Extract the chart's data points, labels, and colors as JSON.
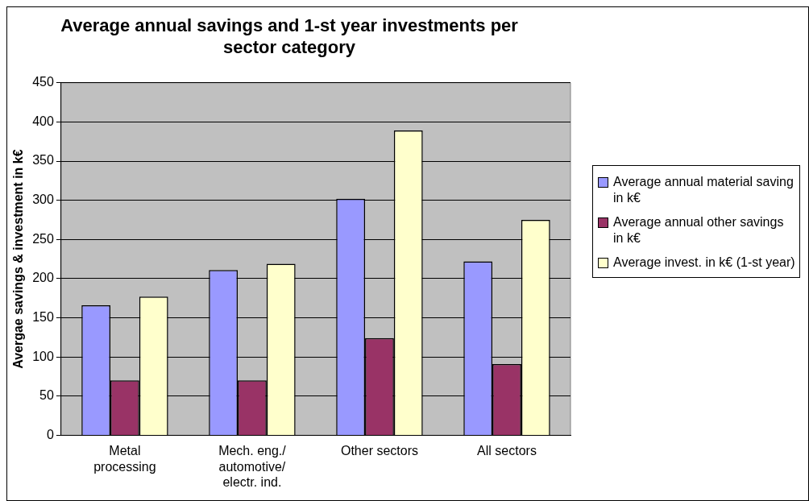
{
  "chart_data": {
    "type": "bar",
    "title": "Average annual savings and 1-st year investments per sector category",
    "ylabel": "Avergae savings & investment in k€",
    "categories": [
      "Metal processing",
      "Mech. eng./ automotive/ electr. ind.",
      "Other sectors",
      "All sectors"
    ],
    "series": [
      {
        "name": "Average annual material saving in k€",
        "color": "#9999ff",
        "values": [
          166,
          211,
          302,
          222
        ]
      },
      {
        "name": "Average annual other savings in k€",
        "color": "#993366",
        "values": [
          70,
          70,
          124,
          91
        ]
      },
      {
        "name": "Average invest. in k€ (1-st year)",
        "color": "#ffffcc",
        "values": [
          177,
          219,
          389,
          275
        ]
      }
    ],
    "ylim": [
      0,
      450
    ],
    "yticks": [
      0,
      50,
      100,
      150,
      200,
      250,
      300,
      350,
      400,
      450
    ],
    "grid": "y",
    "legend": "right"
  }
}
